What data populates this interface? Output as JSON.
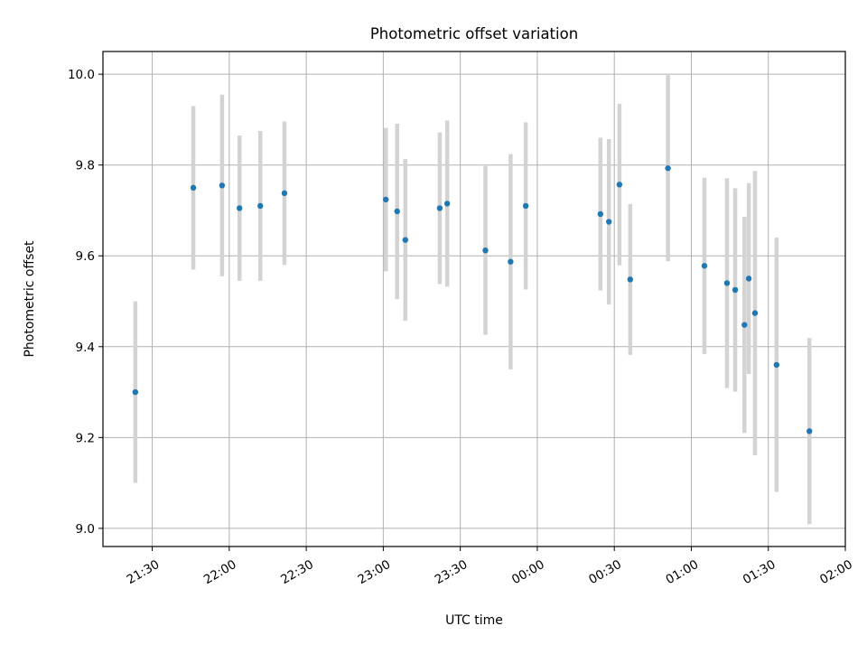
{
  "chart_data": {
    "type": "scatter",
    "title": "Photometric offset variation",
    "xlabel": "UTC time",
    "ylabel": "Photometric offset",
    "x_tick_labels": [
      "21:30",
      "22:00",
      "22:30",
      "23:00",
      "23:30",
      "00:00",
      "00:30",
      "01:00",
      "01:30",
      "02:00"
    ],
    "x_ticks_min": [
      90,
      120,
      150,
      180,
      210,
      240,
      270,
      300,
      330,
      360
    ],
    "xlim_min": [
      70.8,
      360
    ],
    "y_tick_labels": [
      "9.0",
      "9.2",
      "9.4",
      "9.6",
      "9.8",
      "10.0"
    ],
    "y_ticks": [
      9.0,
      9.2,
      9.4,
      9.6,
      9.8,
      10.0
    ],
    "ylim": [
      8.96,
      10.05
    ],
    "grid": true,
    "marker_color": "#1f77b4",
    "errorbar_color": "#d3d3d3",
    "series": [
      {
        "points": [
          {
            "t_min": 83.4,
            "y": 9.3,
            "err": 0.2
          },
          {
            "t_min": 106.0,
            "y": 9.75,
            "err": 0.18
          },
          {
            "t_min": 117.2,
            "y": 9.755,
            "err": 0.2
          },
          {
            "t_min": 124.0,
            "y": 9.705,
            "err": 0.16
          },
          {
            "t_min": 132.1,
            "y": 9.71,
            "err": 0.165
          },
          {
            "t_min": 141.5,
            "y": 9.738,
            "err": 0.158
          },
          {
            "t_min": 181.0,
            "y": 9.724,
            "err": 0.158
          },
          {
            "t_min": 185.4,
            "y": 9.698,
            "err": 0.193
          },
          {
            "t_min": 188.6,
            "y": 9.635,
            "err": 0.178
          },
          {
            "t_min": 202.0,
            "y": 9.705,
            "err": 0.167
          },
          {
            "t_min": 204.9,
            "y": 9.715,
            "err": 0.183
          },
          {
            "t_min": 219.8,
            "y": 9.612,
            "err": 0.186
          },
          {
            "t_min": 229.6,
            "y": 9.587,
            "err": 0.237
          },
          {
            "t_min": 235.5,
            "y": 9.71,
            "err": 0.184
          },
          {
            "t_min": 264.6,
            "y": 9.692,
            "err": 0.168
          },
          {
            "t_min": 267.9,
            "y": 9.675,
            "err": 0.182
          },
          {
            "t_min": 272.0,
            "y": 9.757,
            "err": 0.178
          },
          {
            "t_min": 276.2,
            "y": 9.548,
            "err": 0.166
          },
          {
            "t_min": 290.9,
            "y": 9.793,
            "err": 0.205
          },
          {
            "t_min": 305.1,
            "y": 9.578,
            "err": 0.194
          },
          {
            "t_min": 313.9,
            "y": 9.54,
            "err": 0.231
          },
          {
            "t_min": 317.1,
            "y": 9.525,
            "err": 0.224
          },
          {
            "t_min": 320.7,
            "y": 9.448,
            "err": 0.238
          },
          {
            "t_min": 322.4,
            "y": 9.55,
            "err": 0.21
          },
          {
            "t_min": 324.8,
            "y": 9.474,
            "err": 0.313
          },
          {
            "t_min": 333.2,
            "y": 9.36,
            "err": 0.28
          },
          {
            "t_min": 346.0,
            "y": 9.214,
            "err": 0.205
          }
        ]
      }
    ]
  }
}
